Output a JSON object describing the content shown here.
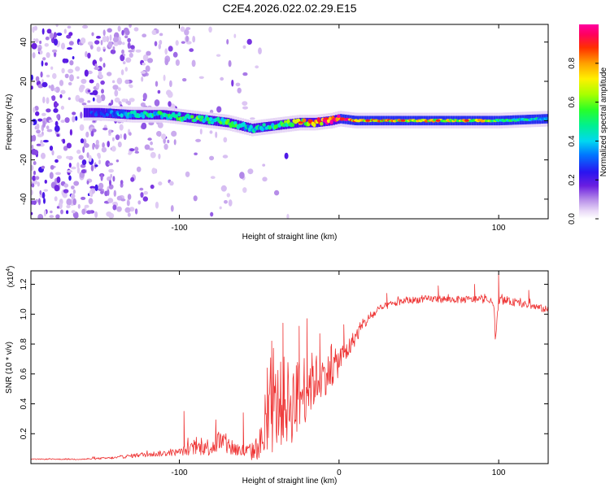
{
  "figure_title": "C2E4.2026.022.02.29.E15",
  "chart_data": [
    {
      "type": "heatmap",
      "title": "C2E4.2026.022.02.29.E15",
      "xlabel": "Height of straight line (km)",
      "ylabel": "Frequency (Hz)",
      "xlim": [
        -193,
        131
      ],
      "ylim": [
        -50,
        49
      ],
      "xticks": [
        -100,
        0,
        100
      ],
      "xtick_labels": [
        "-100",
        "",
        "100"
      ],
      "yticks": [
        -40,
        -20,
        0,
        20,
        40
      ],
      "ytick_labels": [
        "-40",
        "-20",
        "0",
        "20",
        "40"
      ],
      "colorbar": {
        "label": "Normalized spectral amplitude",
        "range": [
          0,
          1
        ],
        "ticks": [
          0.0,
          0.2,
          0.4,
          0.6,
          0.8
        ],
        "tick_labels": [
          "0.0",
          "0.2",
          "0.4",
          "0.6",
          "0.8"
        ]
      },
      "ridge": {
        "description_x": [
          -150,
          -130,
          -110,
          -90,
          -70,
          -60,
          -55,
          -45,
          -35,
          -25,
          -15,
          -5,
          0,
          10,
          30,
          60,
          90,
          100,
          131
        ],
        "frequency_hz": [
          4,
          3,
          3,
          1,
          -1,
          -3,
          -4,
          -3,
          -2,
          -1,
          -1,
          0,
          1,
          0,
          0,
          0,
          0,
          0,
          1
        ],
        "amplitude": [
          0.25,
          0.4,
          0.45,
          0.5,
          0.5,
          0.45,
          0.4,
          0.45,
          0.5,
          0.6,
          0.8,
          0.9,
          0.85,
          0.75,
          0.7,
          0.7,
          0.65,
          0.5,
          0.4
        ]
      }
    },
    {
      "type": "line",
      "xlabel": "Height of straight line (km)",
      "ylabel": "SNR (10 * v/v)",
      "y_multiplier": "(x10",
      "y_multiplier_exp": "4",
      "y_multiplier_close": ")",
      "xlim": [
        -193,
        131
      ],
      "ylim": [
        0,
        12900
      ],
      "xticks": [
        -100,
        0,
        100
      ],
      "xtick_labels": [
        "-100",
        "0",
        "100"
      ],
      "yticks": [
        2000,
        4000,
        6000,
        8000,
        10000,
        12000
      ],
      "ytick_labels": [
        "0.2",
        "0.4",
        "0.6",
        "0.8",
        "1.0",
        "1.2"
      ],
      "series": [
        {
          "name": "SNR",
          "color": "#ee3333",
          "x": [
            -193,
            -160,
            -140,
            -125,
            -110,
            -100,
            -90,
            -80,
            -75,
            -70,
            -62,
            -55,
            -50,
            -45,
            -40,
            -35,
            -30,
            -25,
            -20,
            -15,
            -10,
            -5,
            0,
            5,
            10,
            15,
            20,
            25,
            30,
            40,
            50,
            60,
            70,
            80,
            90,
            97,
            98,
            100,
            110,
            120,
            131
          ],
          "y": [
            300,
            300,
            400,
            600,
            700,
            800,
            1100,
            1200,
            1600,
            1300,
            900,
            800,
            1300,
            2500,
            4000,
            4500,
            4300,
            4800,
            5500,
            5800,
            6000,
            6300,
            7000,
            7600,
            8500,
            9300,
            9900,
            10300,
            10600,
            10900,
            11000,
            11050,
            11000,
            11000,
            11000,
            10800,
            8200,
            11000,
            10800,
            10600,
            10300
          ],
          "noise": [
            30,
            60,
            100,
            200,
            250,
            300,
            600,
            800,
            1000,
            900,
            600,
            700,
            1200,
            2800,
            3500,
            3800,
            3500,
            3300,
            3000,
            2200,
            1800,
            1500,
            1300,
            900,
            700,
            500,
            400,
            350,
            300,
            300,
            300,
            300,
            300,
            300,
            300,
            300,
            300,
            350,
            300,
            300,
            300
          ],
          "peaks": [
            [
              -97,
              3500
            ],
            [
              -60,
              3400
            ],
            [
              -45,
              6400
            ],
            [
              -42,
              8200
            ],
            [
              -35,
              9400
            ],
            [
              -25,
              9200
            ],
            [
              -20,
              9700
            ],
            [
              -12,
              8700
            ],
            [
              -5,
              7800
            ],
            [
              3,
              9300
            ],
            [
              30,
              11400
            ],
            [
              62,
              11900
            ],
            [
              85,
              12000
            ],
            [
              100,
              12700
            ],
            [
              119,
              11600
            ]
          ]
        }
      ]
    }
  ]
}
